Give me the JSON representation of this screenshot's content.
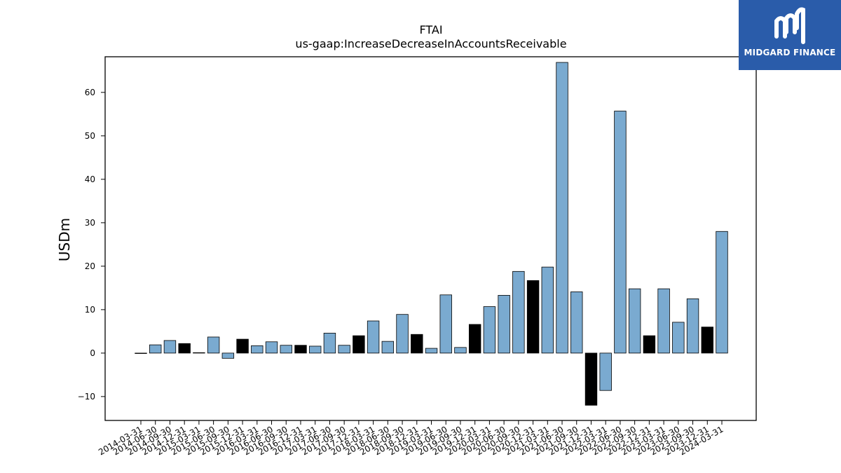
{
  "brand": {
    "name": "MIDGARD FINANCE",
    "bg_color": "#2a5caa"
  },
  "chart_data": {
    "type": "bar",
    "title": "FTAI",
    "subtitle": "us-gaap:IncreaseDecreaseInAccountsReceivable",
    "xlabel": "",
    "ylabel": "USDm",
    "ylim": [
      -15.5,
      68.2
    ],
    "yticks": [
      -10,
      0,
      10,
      20,
      30,
      40,
      50,
      60
    ],
    "grid": false,
    "colors": {
      "quarterly": "#7aaad0",
      "year_end": "#000000"
    },
    "categories": [
      "2014-03-31",
      "2014-06-30",
      "2014-09-30",
      "2014-12-31",
      "2015-03-31",
      "2015-06-30",
      "2015-09-30",
      "2015-12-31",
      "2016-03-31",
      "2016-06-30",
      "2016-09-30",
      "2016-12-31",
      "2017-03-31",
      "2017-06-30",
      "2017-09-30",
      "2017-12-31",
      "2018-03-31",
      "2018-06-30",
      "2018-09-30",
      "2018-12-31",
      "2019-03-31",
      "2019-06-30",
      "2019-09-30",
      "2019-12-31",
      "2020-03-31",
      "2020-06-30",
      "2020-09-30",
      "2020-12-31",
      "2021-03-31",
      "2021-06-30",
      "2021-09-30",
      "2021-12-31",
      "2022-03-31",
      "2022-06-30",
      "2022-09-30",
      "2022-12-31",
      "2023-03-31",
      "2023-06-30",
      "2023-09-30",
      "2023-12-31",
      "2024-03-31"
    ],
    "values": [
      -0.1,
      1.9,
      2.9,
      2.2,
      0.1,
      3.7,
      -1.2,
      3.2,
      1.7,
      2.6,
      1.8,
      1.8,
      1.6,
      4.6,
      1.8,
      4.0,
      7.4,
      2.7,
      8.9,
      4.3,
      1.1,
      13.4,
      1.3,
      6.6,
      10.7,
      13.3,
      18.8,
      16.7,
      19.8,
      66.9,
      14.1,
      -12.0,
      -8.6,
      55.7,
      14.8,
      4.0,
      14.8,
      7.1,
      12.5,
      6.0,
      28.0
    ]
  }
}
